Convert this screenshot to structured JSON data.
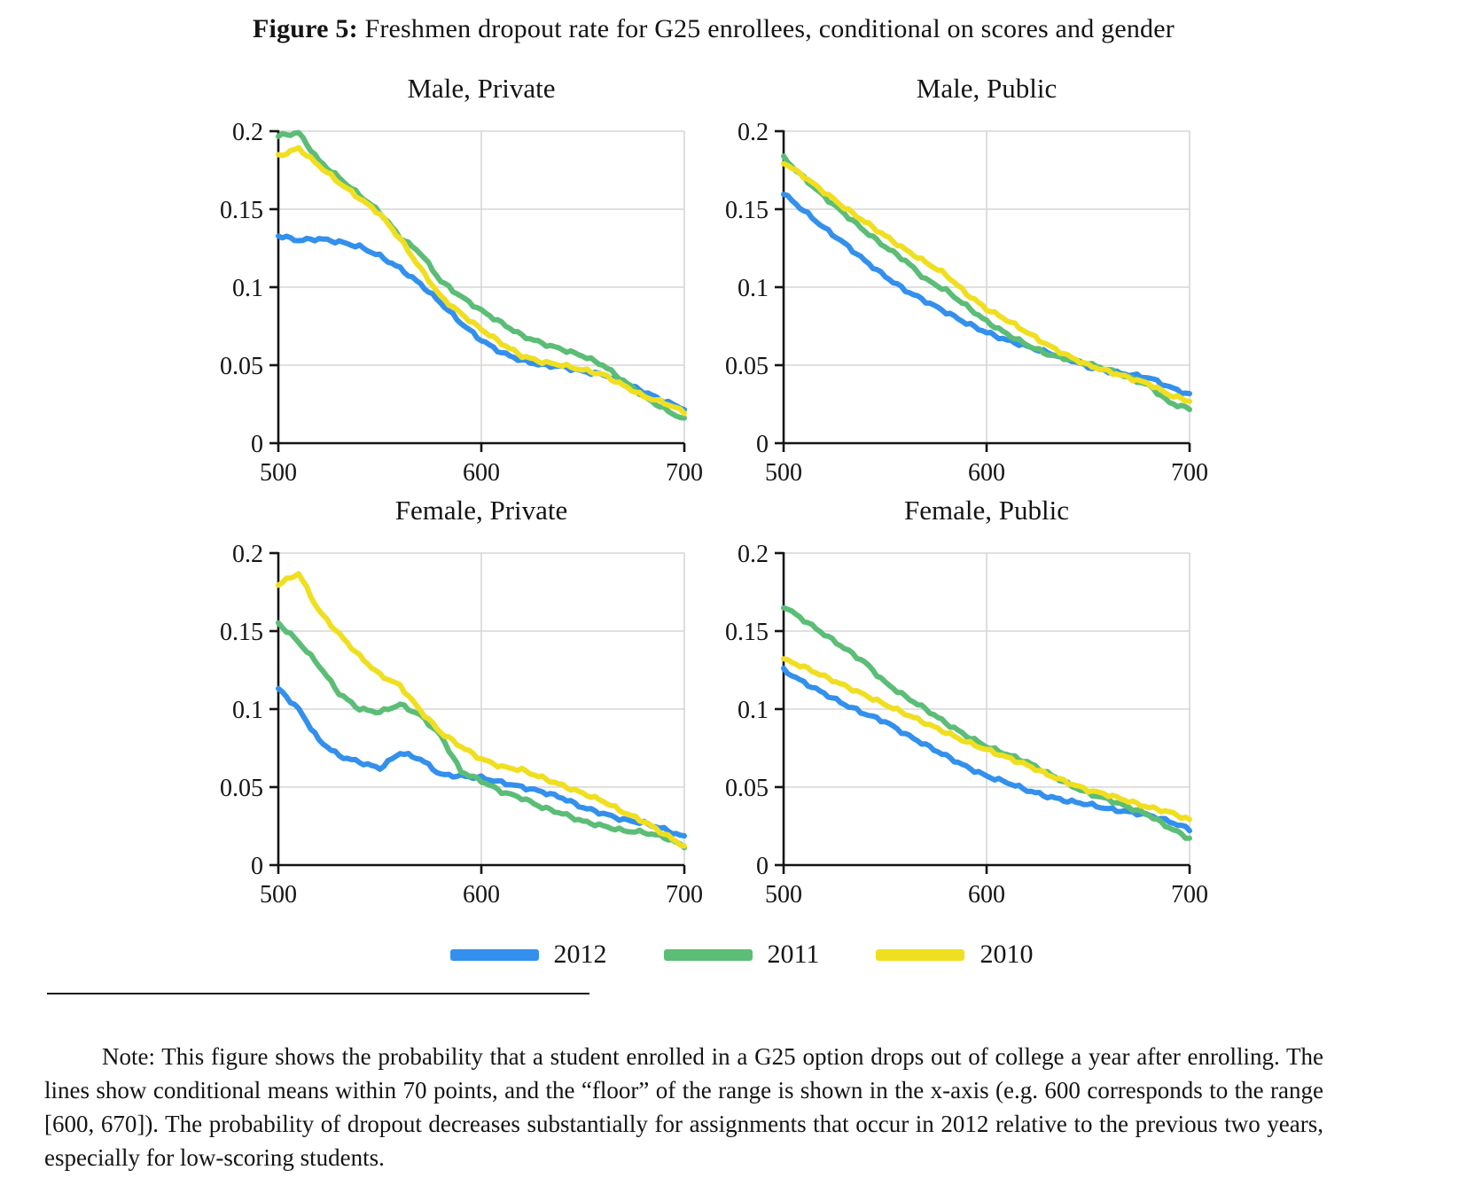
{
  "title": {
    "figure_label": "Figure 5:",
    "figure_title": " Freshmen dropout rate for G25 enrollees, conditional on scores and gender"
  },
  "legend": [
    {
      "label": "2012",
      "color": "#3390ec"
    },
    {
      "label": "2011",
      "color": "#5bbd76"
    },
    {
      "label": "2010",
      "color": "#f0df20"
    }
  ],
  "style_colors": {
    "grid": "#d6d6d6",
    "axis": "#141414",
    "text": "#141414"
  },
  "note": {
    "text": "Note: This figure shows the probability that a student enrolled in a G25 option drops out of college a year after enrolling.  The lines show conditional means within 70 points, and the “floor” of the range is shown in the x-axis (e.g.  600 corresponds to the range [600, 670]).  The probability of dropout decreases substantially for assignments that occur in 2012 relative to the previous two years, especially for low-scoring students."
  },
  "chart_data": [
    {
      "type": "line",
      "title": "Male, Private",
      "x": [
        500,
        510,
        520,
        530,
        540,
        550,
        560,
        570,
        580,
        590,
        600,
        610,
        620,
        630,
        640,
        650,
        660,
        670,
        680,
        690,
        700
      ],
      "series": [
        {
          "name": "2012",
          "values": [
            0.133,
            0.13,
            0.131,
            0.129,
            0.126,
            0.12,
            0.112,
            0.102,
            0.09,
            0.077,
            0.066,
            0.058,
            0.053,
            0.05,
            0.049,
            0.046,
            0.044,
            0.039,
            0.033,
            0.027,
            0.022
          ]
        },
        {
          "name": "2011",
          "values": [
            0.197,
            0.199,
            0.181,
            0.17,
            0.159,
            0.148,
            0.132,
            0.122,
            0.104,
            0.094,
            0.085,
            0.077,
            0.069,
            0.064,
            0.06,
            0.056,
            0.05,
            0.04,
            0.03,
            0.022,
            0.015
          ]
        },
        {
          "name": "2010",
          "values": [
            0.184,
            0.189,
            0.178,
            0.167,
            0.157,
            0.147,
            0.131,
            0.112,
            0.094,
            0.083,
            0.073,
            0.064,
            0.056,
            0.052,
            0.05,
            0.047,
            0.044,
            0.037,
            0.03,
            0.026,
            0.02
          ]
        }
      ],
      "xlim": [
        500,
        700
      ],
      "ylim": [
        0,
        0.2
      ],
      "xticks": [
        500,
        600,
        700
      ],
      "xtick_labels": [
        "500",
        "600",
        "700"
      ],
      "yticks": [
        0,
        0.05,
        0.1,
        0.15,
        0.2
      ],
      "ytick_labels": [
        "0",
        "0.05",
        "0.1",
        "0.15",
        "0.2"
      ],
      "grid": true,
      "legend_position": "none"
    },
    {
      "type": "line",
      "title": "Male, Public",
      "x": [
        500,
        510,
        520,
        530,
        540,
        550,
        560,
        570,
        580,
        590,
        600,
        610,
        620,
        630,
        640,
        650,
        660,
        670,
        680,
        690,
        700
      ],
      "series": [
        {
          "name": "2012",
          "values": [
            0.16,
            0.149,
            0.138,
            0.128,
            0.117,
            0.107,
            0.098,
            0.091,
            0.084,
            0.077,
            0.071,
            0.066,
            0.062,
            0.058,
            0.054,
            0.049,
            0.046,
            0.044,
            0.042,
            0.036,
            0.031
          ]
        },
        {
          "name": "2011",
          "values": [
            0.183,
            0.17,
            0.158,
            0.147,
            0.136,
            0.126,
            0.117,
            0.105,
            0.098,
            0.088,
            0.078,
            0.07,
            0.063,
            0.057,
            0.054,
            0.051,
            0.047,
            0.042,
            0.037,
            0.026,
            0.022
          ]
        },
        {
          "name": "2010",
          "values": [
            0.18,
            0.171,
            0.161,
            0.151,
            0.142,
            0.133,
            0.124,
            0.116,
            0.108,
            0.096,
            0.086,
            0.079,
            0.071,
            0.063,
            0.056,
            0.05,
            0.046,
            0.042,
            0.038,
            0.031,
            0.027
          ]
        }
      ],
      "xlim": [
        500,
        700
      ],
      "ylim": [
        0,
        0.2
      ],
      "xticks": [
        500,
        600,
        700
      ],
      "xtick_labels": [
        "500",
        "600",
        "700"
      ],
      "yticks": [
        0,
        0.05,
        0.1,
        0.15,
        0.2
      ],
      "ytick_labels": [
        "0",
        "0.05",
        "0.1",
        "0.15",
        "0.2"
      ],
      "grid": true,
      "legend_position": "none"
    },
    {
      "type": "line",
      "title": "Female, Private",
      "x": [
        500,
        510,
        520,
        530,
        540,
        550,
        560,
        570,
        580,
        590,
        600,
        610,
        620,
        630,
        640,
        650,
        660,
        670,
        680,
        690,
        700
      ],
      "series": [
        {
          "name": "2012",
          "values": [
            0.113,
            0.1,
            0.08,
            0.07,
            0.066,
            0.062,
            0.072,
            0.068,
            0.058,
            0.057,
            0.056,
            0.053,
            0.05,
            0.047,
            0.043,
            0.037,
            0.033,
            0.029,
            0.027,
            0.023,
            0.018
          ]
        },
        {
          "name": "2011",
          "values": [
            0.155,
            0.143,
            0.128,
            0.11,
            0.1,
            0.098,
            0.103,
            0.096,
            0.083,
            0.06,
            0.054,
            0.047,
            0.043,
            0.037,
            0.033,
            0.028,
            0.025,
            0.022,
            0.021,
            0.018,
            0.012
          ]
        },
        {
          "name": "2010",
          "values": [
            0.18,
            0.187,
            0.163,
            0.148,
            0.134,
            0.122,
            0.115,
            0.099,
            0.085,
            0.076,
            0.068,
            0.063,
            0.061,
            0.056,
            0.051,
            0.046,
            0.041,
            0.034,
            0.028,
            0.02,
            0.012
          ]
        }
      ],
      "xlim": [
        500,
        700
      ],
      "ylim": [
        0,
        0.2
      ],
      "xticks": [
        500,
        600,
        700
      ],
      "xtick_labels": [
        "500",
        "600",
        "700"
      ],
      "yticks": [
        0,
        0.05,
        0.1,
        0.15,
        0.2
      ],
      "ytick_labels": [
        "0",
        "0.05",
        "0.1",
        "0.15",
        "0.2"
      ],
      "grid": true,
      "legend_position": "none"
    },
    {
      "type": "line",
      "title": "Female, Public",
      "x": [
        500,
        510,
        520,
        530,
        540,
        550,
        560,
        570,
        580,
        590,
        600,
        610,
        620,
        630,
        640,
        650,
        660,
        670,
        680,
        690,
        700
      ],
      "series": [
        {
          "name": "2012",
          "values": [
            0.125,
            0.117,
            0.11,
            0.103,
            0.097,
            0.092,
            0.084,
            0.077,
            0.07,
            0.063,
            0.057,
            0.053,
            0.048,
            0.044,
            0.041,
            0.039,
            0.036,
            0.034,
            0.032,
            0.028,
            0.023
          ]
        },
        {
          "name": "2011",
          "values": [
            0.166,
            0.157,
            0.148,
            0.139,
            0.13,
            0.117,
            0.108,
            0.1,
            0.091,
            0.083,
            0.076,
            0.071,
            0.066,
            0.059,
            0.052,
            0.046,
            0.042,
            0.037,
            0.032,
            0.024,
            0.017
          ]
        },
        {
          "name": "2010",
          "values": [
            0.132,
            0.127,
            0.121,
            0.115,
            0.109,
            0.103,
            0.097,
            0.091,
            0.085,
            0.079,
            0.074,
            0.069,
            0.064,
            0.058,
            0.053,
            0.048,
            0.045,
            0.041,
            0.037,
            0.034,
            0.029
          ]
        }
      ],
      "xlim": [
        500,
        700
      ],
      "ylim": [
        0,
        0.2
      ],
      "xticks": [
        500,
        600,
        700
      ],
      "xtick_labels": [
        "500",
        "600",
        "700"
      ],
      "yticks": [
        0,
        0.05,
        0.1,
        0.15,
        0.2
      ],
      "ytick_labels": [
        "0",
        "0.05",
        "0.1",
        "0.15",
        "0.2"
      ],
      "grid": true,
      "legend_position": "none"
    }
  ]
}
